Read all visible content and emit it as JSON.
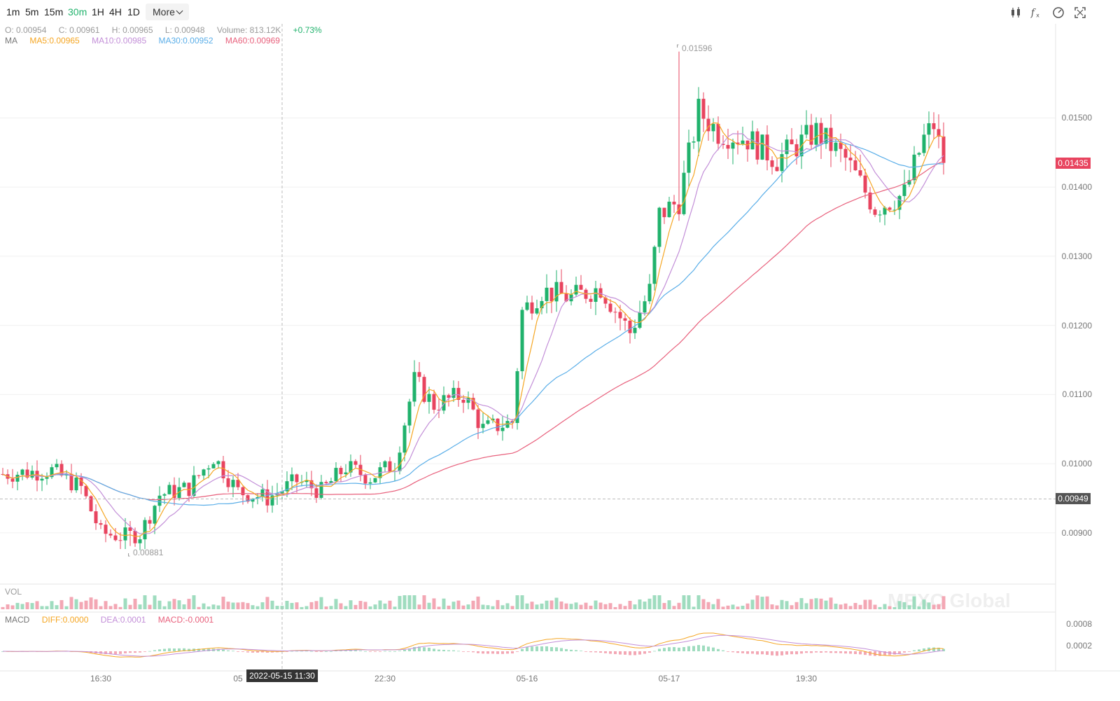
{
  "toolbar": {
    "timeframes": [
      "1m",
      "5m",
      "15m",
      "30m",
      "1H",
      "4H",
      "1D"
    ],
    "active": "30m",
    "more_label": "More",
    "icons": [
      "candlestick-icon",
      "function-icon",
      "gauge-icon",
      "fullscreen-icon"
    ]
  },
  "header": {
    "open": "O: 0.00954",
    "close": "C: 0.00961",
    "high": "H: 0.00965",
    "low": "L: 0.00948",
    "volume": "Volume: 813.12K",
    "change": "+0.73%"
  },
  "ma_legend": {
    "label": "MA",
    "ma5": "MA5:0.00965",
    "ma10": "MA10:0.00985",
    "ma30": "MA30:0.00952",
    "ma60": "MA60:0.00969"
  },
  "vol_label": "VOL",
  "macd_legend": {
    "label": "MACD",
    "diff": "DIFF:0.0000",
    "dea": "DEA:0.0001",
    "macd": "MACD:-0.0001"
  },
  "annotations": {
    "high": "0.01596",
    "low": "0.00881"
  },
  "last_price": "0.01435",
  "crosshair": {
    "price": "0.00949",
    "time": "2022-05-15 11:30"
  },
  "watermark": "MEXC Global",
  "x_axis": [
    "16:30",
    "05",
    "22:30",
    "05-16",
    "05-17",
    "19:30"
  ],
  "y_axis": [
    "0.01500",
    "0.01400",
    "0.01300",
    "0.01200",
    "0.01100",
    "0.01000",
    "0.00900"
  ],
  "macd_axis": [
    "0.0008",
    "0.0002"
  ],
  "colors": {
    "up": "#20b26c",
    "down": "#e8445f",
    "ma5": "#f5a623",
    "ma10": "#c38fd8",
    "ma30": "#5aaee8",
    "ma60": "#e8607c",
    "last_price_bg": "#e8445f",
    "crosshair_bg": "#555555"
  },
  "chart_data": {
    "type": "candlestick",
    "timeframe": "30m",
    "y_range": [
      0.0083,
      0.0163
    ],
    "anchors": [
      [
        0,
        0.00985
      ],
      [
        10,
        0.0099
      ],
      [
        16,
        0.00965
      ],
      [
        20,
        0.009
      ],
      [
        24,
        0.00895
      ],
      [
        28,
        0.00898
      ],
      [
        32,
        0.00955
      ],
      [
        38,
        0.00965
      ],
      [
        43,
        0.0101
      ],
      [
        48,
        0.0096
      ],
      [
        54,
        0.0095
      ],
      [
        60,
        0.00975
      ],
      [
        65,
        0.0096
      ],
      [
        70,
        0.00995
      ],
      [
        75,
        0.0098
      ],
      [
        80,
        0.01
      ],
      [
        84,
        0.0112
      ],
      [
        88,
        0.01085
      ],
      [
        94,
        0.011
      ],
      [
        98,
        0.0105
      ],
      [
        104,
        0.0106
      ],
      [
        106,
        0.0122
      ],
      [
        110,
        0.0125
      ],
      [
        116,
        0.0124
      ],
      [
        122,
        0.01255
      ],
      [
        128,
        0.0119
      ],
      [
        132,
        0.0125
      ],
      [
        134,
        0.0136
      ],
      [
        138,
        0.0138
      ],
      [
        142,
        0.0151
      ],
      [
        146,
        0.0148
      ],
      [
        152,
        0.0147
      ],
      [
        158,
        0.0144
      ],
      [
        166,
        0.0148
      ],
      [
        172,
        0.0144
      ],
      [
        178,
        0.0137
      ],
      [
        184,
        0.0139
      ],
      [
        188,
        0.0147
      ],
      [
        190,
        0.0149
      ],
      [
        192,
        0.01435
      ]
    ],
    "candle_count": 193,
    "high_point": 0.01596,
    "low_point": 0.00881,
    "last_close": 0.01435
  }
}
